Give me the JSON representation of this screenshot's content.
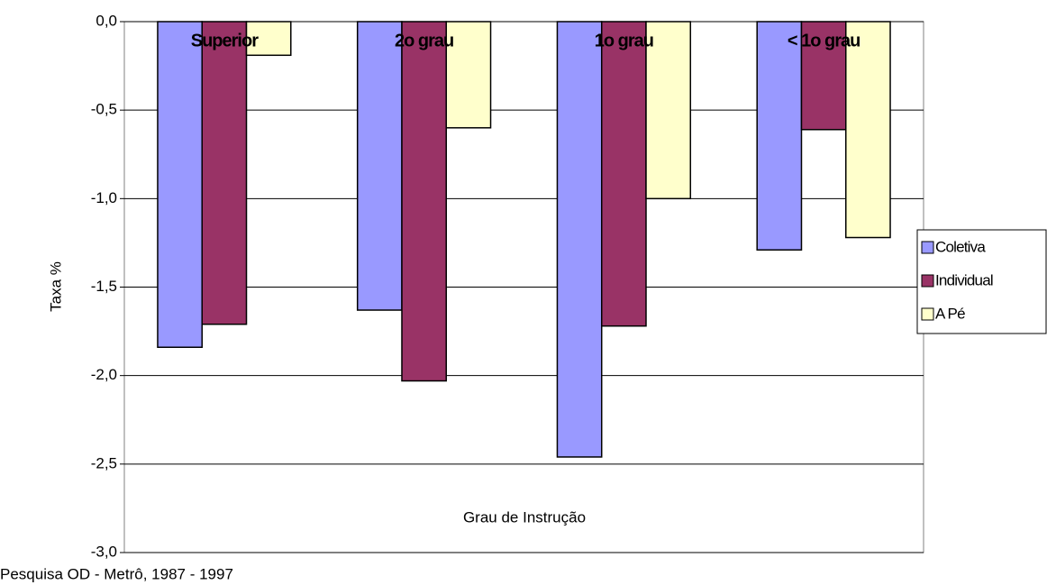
{
  "chart_data": {
    "type": "bar",
    "categories": [
      "Superior",
      "2o grau",
      "1o grau",
      "< 1o grau"
    ],
    "series": [
      {
        "name": "Coletiva",
        "color": "#9999ff",
        "values": [
          -1.84,
          -1.63,
          -2.46,
          -1.29
        ]
      },
      {
        "name": "Individual",
        "color": "#993366",
        "values": [
          -1.71,
          -2.03,
          -1.72,
          -0.61
        ]
      },
      {
        "name": "A Pé",
        "color": "#ffffcc",
        "values": [
          -0.19,
          -0.6,
          -1.0,
          -1.22
        ]
      }
    ],
    "ylabel": "Taxa %",
    "xlabel": "Grau de Instrução",
    "note": "Pesquisa OD - Metrô, 1987 - 1997",
    "ylim": [
      -3.0,
      0.0
    ],
    "yticks": [
      {
        "value": 0,
        "label": "0,0"
      },
      {
        "value": -0.5,
        "label": "-0,5"
      },
      {
        "value": -1.0,
        "label": "-1,0"
      },
      {
        "value": -1.5,
        "label": "-1,5"
      },
      {
        "value": -2.0,
        "label": "-2,0"
      },
      {
        "value": -2.5,
        "label": "-2,5"
      },
      {
        "value": -3.0,
        "label": "-3,0"
      }
    ],
    "grid": true,
    "legend": "right"
  }
}
